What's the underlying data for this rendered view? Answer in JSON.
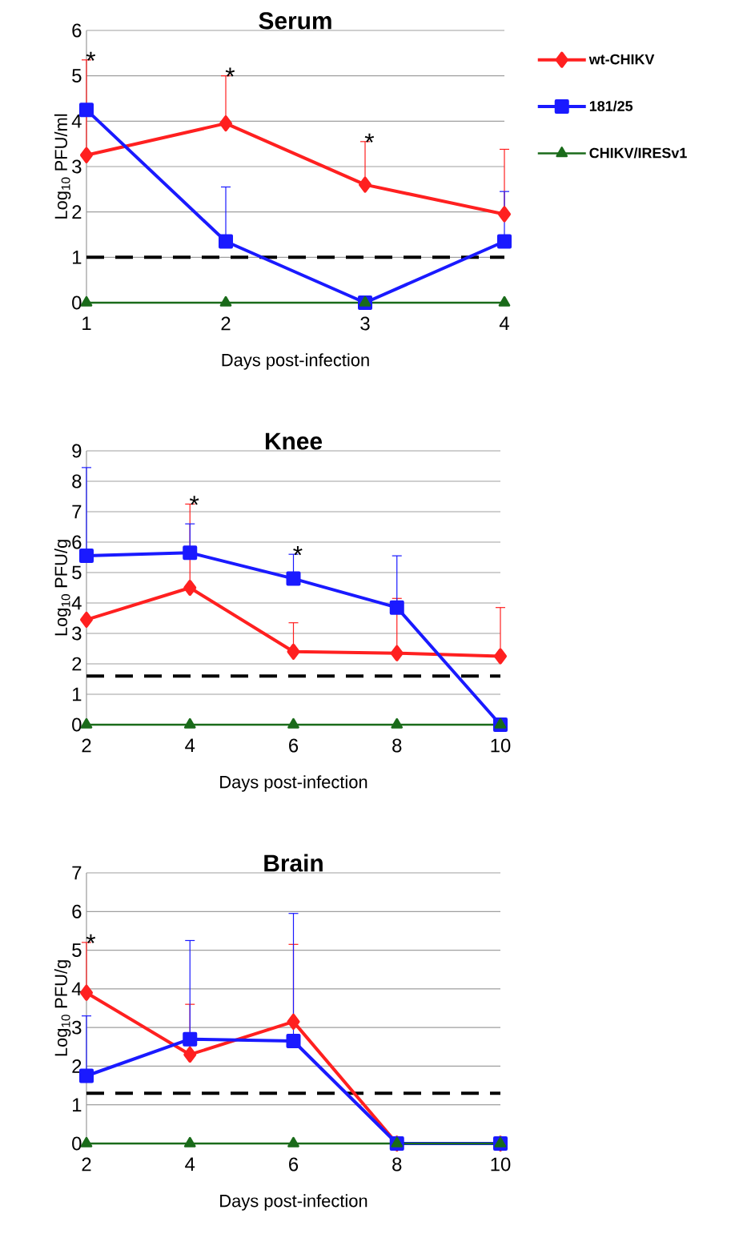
{
  "chart_data": [
    {
      "type": "line",
      "title": "Serum",
      "xlabel": "Days post-infection",
      "ylabel": "Log$_{10}$ PFU/ml",
      "x": [
        1,
        2,
        3,
        4
      ],
      "xlim": [
        1,
        4
      ],
      "xticks": [
        1,
        2,
        3,
        4
      ],
      "ylim": [
        0,
        6
      ],
      "yticks": [
        0,
        1,
        2,
        3,
        4,
        5,
        6
      ],
      "grid": "y",
      "legend": "right",
      "series": [
        {
          "name": "wt-CHIKV",
          "color": "#ff2020",
          "marker": "diamond",
          "values": [
            3.25,
            3.95,
            2.6,
            1.95
          ],
          "errors": [
            [
              3.25,
              5.35
            ],
            [
              3.95,
              5.0
            ],
            [
              2.6,
              3.55
            ],
            [
              1.95,
              3.38
            ]
          ]
        },
        {
          "name": "181/25",
          "color": "#1a1aff",
          "marker": "square",
          "values": [
            4.25,
            1.35,
            0,
            1.35
          ],
          "errors": [
            null,
            [
              1.35,
              2.55
            ],
            null,
            [
              1.35,
              2.45
            ]
          ]
        },
        {
          "name": "CHIKV/IRESv1",
          "color": "#1a6b1a",
          "marker": "triangle",
          "values": [
            0,
            0,
            0,
            0
          ]
        }
      ],
      "ref_lines": [
        {
          "axis": "y",
          "value": 1,
          "color": "#000000",
          "line_style": "dashed"
        }
      ],
      "annotations": [
        {
          "text": "*",
          "x": 1,
          "y": 5.35
        },
        {
          "text": "*",
          "x": 2,
          "y": 5.0
        },
        {
          "text": "*",
          "x": 3,
          "y": 3.55
        }
      ]
    },
    {
      "type": "line",
      "title": "Knee",
      "xlabel": "Days post-infection",
      "ylabel": "Log$_{10}$ PFU/g",
      "x": [
        2,
        4,
        6,
        8,
        10
      ],
      "xlim": [
        2,
        10
      ],
      "xticks": [
        2,
        4,
        6,
        8,
        10
      ],
      "ylim": [
        0,
        9
      ],
      "yticks": [
        0,
        1,
        2,
        3,
        4,
        5,
        6,
        7,
        8,
        9
      ],
      "grid": "y",
      "series": [
        {
          "color": "#ff2020",
          "marker": "diamond",
          "values": [
            3.45,
            4.5,
            2.4,
            2.35,
            2.25
          ],
          "errors": [
            null,
            [
              4.5,
              7.25
            ],
            [
              2.4,
              3.35
            ],
            [
              2.35,
              4.15
            ],
            [
              2.25,
              3.85
            ]
          ]
        },
        {
          "color": "#1a1aff",
          "marker": "square",
          "values": [
            5.55,
            5.65,
            4.8,
            3.85,
            0
          ],
          "errors": [
            [
              5.55,
              8.45
            ],
            [
              5.65,
              6.6
            ],
            [
              4.8,
              5.6
            ],
            [
              3.85,
              5.55
            ],
            null
          ]
        },
        {
          "color": "#1a6b1a",
          "marker": "triangle",
          "values": [
            0,
            0,
            0,
            0,
            0
          ]
        }
      ],
      "ref_lines": [
        {
          "axis": "y",
          "value": 1.6,
          "color": "#000000",
          "line_style": "dashed"
        }
      ],
      "annotations": [
        {
          "text": "*",
          "x": 4,
          "y": 7.25
        },
        {
          "text": "*",
          "x": 6,
          "y": 5.6
        }
      ]
    },
    {
      "type": "line",
      "title": "Brain",
      "xlabel": "Days post-infection",
      "ylabel": "Log$_{10}$ PFU/g",
      "x": [
        2,
        4,
        6,
        8,
        10
      ],
      "xlim": [
        2,
        10
      ],
      "xticks": [
        2,
        4,
        6,
        8,
        10
      ],
      "ylim": [
        0,
        7
      ],
      "yticks": [
        0,
        1,
        2,
        3,
        4,
        5,
        6,
        7
      ],
      "grid": "y",
      "series": [
        {
          "color": "#ff2020",
          "marker": "diamond",
          "values": [
            3.9,
            2.3,
            3.15,
            0,
            0
          ],
          "errors": [
            [
              3.9,
              5.2
            ],
            [
              2.3,
              3.6
            ],
            [
              3.15,
              5.15
            ],
            null,
            null
          ]
        },
        {
          "color": "#1a1aff",
          "marker": "square",
          "values": [
            1.75,
            2.7,
            2.65,
            0,
            0
          ],
          "errors": [
            [
              1.75,
              3.3
            ],
            [
              2.7,
              5.25
            ],
            [
              2.65,
              5.95
            ],
            null,
            null
          ]
        },
        {
          "color": "#1a6b1a",
          "marker": "triangle",
          "values": [
            0,
            0,
            0,
            0,
            0
          ]
        }
      ],
      "ref_lines": [
        {
          "axis": "y",
          "value": 1.3,
          "color": "#000000",
          "line_style": "dashed"
        }
      ],
      "annotations": [
        {
          "text": "*",
          "x": 2,
          "y": 5.2
        }
      ]
    }
  ]
}
